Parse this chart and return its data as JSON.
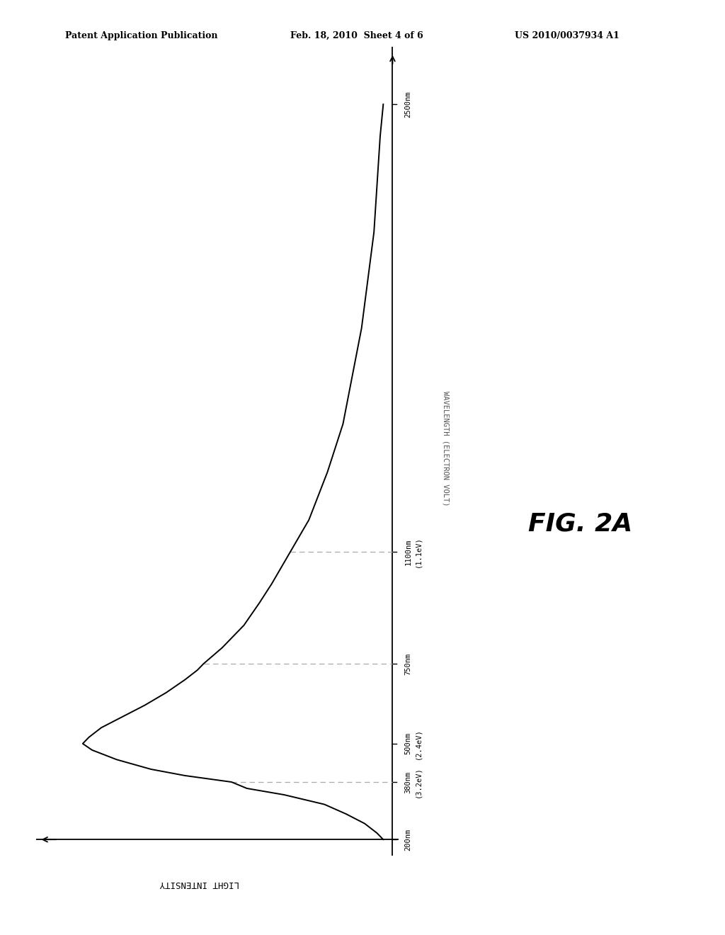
{
  "header_left": "Patent Application Publication",
  "header_mid": "Feb. 18, 2010  Sheet 4 of 6",
  "header_right": "US 2010/0037934 A1",
  "fig_label": "FIG. 2A",
  "y_axis_label": "WAVELENGTH (ELECTRON VOLT)",
  "x_axis_label": "LIGHT INTENSITY",
  "tick_labels": [
    {
      "wavelength": 200,
      "label": "200nm",
      "ev": null
    },
    {
      "wavelength": 380,
      "label": "380nm",
      "ev": "(3.2eV)"
    },
    {
      "wavelength": 500,
      "label": "500nm",
      "ev": "(2.4eV)"
    },
    {
      "wavelength": 750,
      "label": "750nm",
      "ev": null
    },
    {
      "wavelength": 1100,
      "label": "1100nm",
      "ev": "(1.1eV)"
    },
    {
      "wavelength": 2500,
      "label": "2500nm",
      "ev": null
    }
  ],
  "dashed_lines": [
    380,
    750,
    1100
  ],
  "background_color": "#ffffff",
  "line_color": "#000000",
  "dashed_color": "#aaaaaa",
  "axis_color": "#000000",
  "wavelengths": [
    200,
    220,
    250,
    280,
    310,
    340,
    360,
    380,
    400,
    420,
    450,
    480,
    500,
    520,
    550,
    580,
    620,
    660,
    700,
    730,
    750,
    800,
    870,
    940,
    1000,
    1050,
    1100,
    1200,
    1350,
    1500,
    1650,
    1800,
    1950,
    2100,
    2250,
    2400,
    2500
  ],
  "intensities": [
    0.03,
    0.05,
    0.09,
    0.15,
    0.22,
    0.35,
    0.47,
    0.52,
    0.67,
    0.78,
    0.89,
    0.97,
    1.0,
    0.98,
    0.94,
    0.88,
    0.8,
    0.73,
    0.67,
    0.63,
    0.61,
    0.55,
    0.48,
    0.43,
    0.39,
    0.36,
    0.33,
    0.27,
    0.21,
    0.16,
    0.13,
    0.1,
    0.08,
    0.06,
    0.05,
    0.04,
    0.03
  ]
}
